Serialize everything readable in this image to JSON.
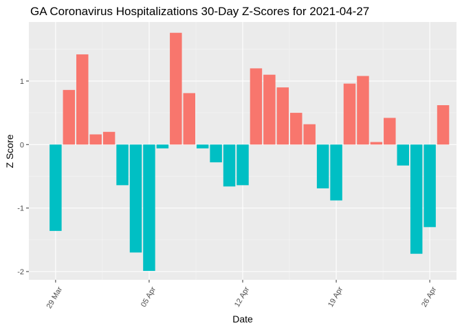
{
  "chart_data": {
    "type": "bar",
    "title": "GA Coronavirus Hospitalizations 30-Day Z-Scores for 2021-04-27",
    "xlabel": "Date",
    "ylabel": "Z Score",
    "ylim": [
      -2.13,
      1.93
    ],
    "grid": true,
    "legend": "none",
    "colors": {
      "positive": "#F8766D",
      "negative": "#00BFC4",
      "panel_background": "#EBEBEB",
      "grid_major": "#FFFFFF",
      "grid_minor": "#F5F5F5"
    },
    "y_ticks": [
      {
        "value": -2,
        "label": "-2"
      },
      {
        "value": -1,
        "label": "-1"
      },
      {
        "value": 0,
        "label": "0"
      },
      {
        "value": 1,
        "label": "1"
      }
    ],
    "x_ticks": [
      {
        "value": "2021-03-29",
        "label": "29 Mar"
      },
      {
        "value": "2021-04-05",
        "label": "05 Apr"
      },
      {
        "value": "2021-04-12",
        "label": "12 Apr"
      },
      {
        "value": "2021-04-19",
        "label": "19 Apr"
      },
      {
        "value": "2021-04-26",
        "label": "26 Apr"
      }
    ],
    "x_range": [
      "2021-03-27",
      "2021-04-28"
    ],
    "points": [
      {
        "x": "2021-03-29",
        "y": -1.36
      },
      {
        "x": "2021-03-30",
        "y": 0.86
      },
      {
        "x": "2021-03-31",
        "y": 1.42
      },
      {
        "x": "2021-04-01",
        "y": 0.16
      },
      {
        "x": "2021-04-02",
        "y": 0.2
      },
      {
        "x": "2021-04-03",
        "y": -0.64
      },
      {
        "x": "2021-04-04",
        "y": -1.7
      },
      {
        "x": "2021-04-05",
        "y": -1.99
      },
      {
        "x": "2021-04-06",
        "y": -0.06
      },
      {
        "x": "2021-04-07",
        "y": 1.76
      },
      {
        "x": "2021-04-08",
        "y": 0.81
      },
      {
        "x": "2021-04-09",
        "y": -0.06
      },
      {
        "x": "2021-04-10",
        "y": -0.28
      },
      {
        "x": "2021-04-11",
        "y": -0.66
      },
      {
        "x": "2021-04-12",
        "y": -0.64
      },
      {
        "x": "2021-04-13",
        "y": 1.2
      },
      {
        "x": "2021-04-14",
        "y": 1.1
      },
      {
        "x": "2021-04-15",
        "y": 0.9
      },
      {
        "x": "2021-04-16",
        "y": 0.5
      },
      {
        "x": "2021-04-17",
        "y": 0.32
      },
      {
        "x": "2021-04-18",
        "y": -0.69
      },
      {
        "x": "2021-04-19",
        "y": -0.88
      },
      {
        "x": "2021-04-20",
        "y": 0.96
      },
      {
        "x": "2021-04-21",
        "y": 1.08
      },
      {
        "x": "2021-04-22",
        "y": 0.04
      },
      {
        "x": "2021-04-23",
        "y": 0.42
      },
      {
        "x": "2021-04-24",
        "y": -0.33
      },
      {
        "x": "2021-04-25",
        "y": -1.72
      },
      {
        "x": "2021-04-26",
        "y": -1.3
      },
      {
        "x": "2021-04-27",
        "y": 0.62
      }
    ]
  }
}
